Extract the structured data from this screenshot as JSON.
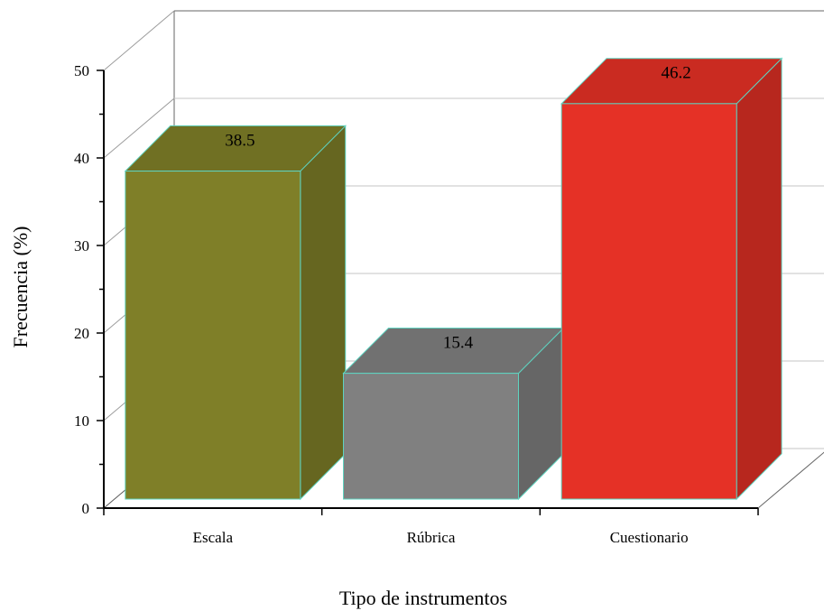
{
  "chart_data": {
    "type": "bar",
    "categories": [
      "Escala",
      "Rúbrica",
      "Cuestionario"
    ],
    "values": [
      38.5,
      15.4,
      46.2
    ],
    "value_labels": [
      "38.5",
      "15.4",
      "46.2"
    ],
    "xlabel": "Tipo de instrumentos",
    "ylabel": "Frecuencia (%)",
    "ylim": [
      0,
      50
    ],
    "yticks": [
      0,
      10,
      20,
      30,
      40,
      50
    ],
    "grid": true,
    "three_d": true,
    "colors": [
      "#7f7f28",
      "#808080",
      "#e53126"
    ]
  }
}
